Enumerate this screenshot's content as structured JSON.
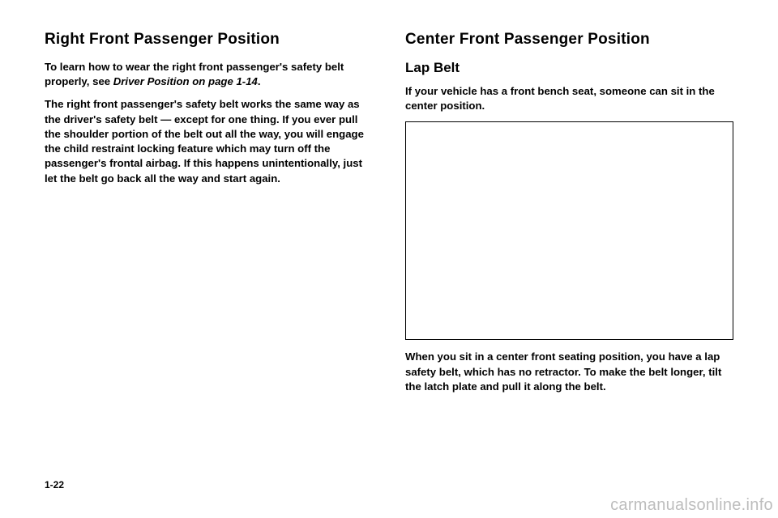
{
  "left": {
    "title": "Right Front Passenger Position",
    "p1_a": "To learn how to wear the right front passenger's safety belt properly, see ",
    "p1_ref": "Driver Position on page 1-14",
    "p1_b": ".",
    "p2": "The right front passenger's safety belt works the same way as the driver's safety belt — except for one thing. If you ever pull the shoulder portion of the belt out all the way, you will engage the child restraint locking feature which may turn off the passenger's frontal airbag. If this happens unintentionally, just let the belt go back all the way and start again."
  },
  "right": {
    "title": "Center Front Passenger Position",
    "subtitle": "Lap Belt",
    "p1": "If your vehicle has a front bench seat, someone can sit in the center position.",
    "p2": "When you sit in a center front seating position, you have a lap safety belt, which has no retractor. To make the belt longer, tilt the latch plate and pull it along the belt."
  },
  "footer": {
    "page_number": "1-22",
    "watermark": "carmanualsonline.info"
  },
  "style": {
    "page_bg": "#ffffff",
    "text_color": "#000000",
    "watermark_color": "#bdbdbd"
  }
}
